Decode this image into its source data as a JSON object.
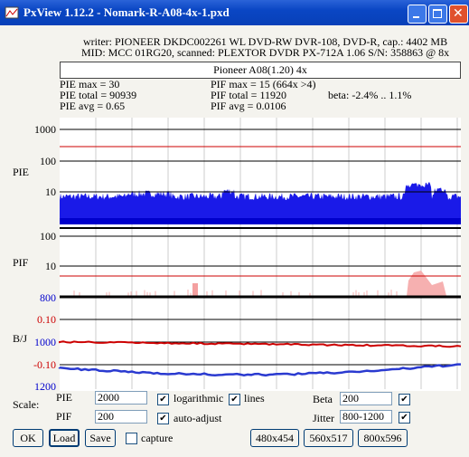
{
  "window": {
    "title": "PxView 1.12.2  -  Nomark-R-A08-4x-1.pxd"
  },
  "info": {
    "writer": "writer: PIONEER DKDC002261 WL DVD-RW DVR-108, DVD-R, cap.: 4402 MB",
    "mid": "MID: MCC 01RG20, scanned: PLEXTOR DVDR PX-712A 1.06 S/N: 358863 @ 8x",
    "profile": "Pioneer A08(1.20) 4x"
  },
  "stats": {
    "pie_max": "PIE max = 30",
    "pie_total": "PIE total = 90939",
    "pie_avg": "PIE avg = 0.65",
    "pif_max": "PIF max = 15 (664x >4)",
    "pif_total": "PIF total = 11920",
    "pif_avg": "PIF avg = 0.0106",
    "beta": "beta: -2.4% .. 1.1%"
  },
  "plots": {
    "pie": {
      "label": "PIE",
      "ticks": [
        "1000",
        "100",
        "10"
      ]
    },
    "pif": {
      "label": "PIF",
      "ticks": [
        "100",
        "10"
      ],
      "jitter_tick": "800"
    },
    "bj": {
      "label": "B/J",
      "beta_ticks": [
        "0.10",
        "-0.10"
      ],
      "jitter_ticks": [
        "1000",
        "1200"
      ]
    }
  },
  "controls": {
    "scale": "Scale:",
    "pie": "PIE",
    "pie_value": "2000",
    "pif": "PIF",
    "pif_value": "200",
    "logarithmic": "logarithmic",
    "lines": "lines",
    "auto_adjust": "auto-adjust",
    "beta": "Beta",
    "beta_value": "200",
    "jitter": "Jitter",
    "jitter_value": "800-1200",
    "ok": "OK",
    "load": "Load",
    "save": "Save",
    "capture": "capture",
    "size1": "480x454",
    "size2": "560x517",
    "size3": "800x596"
  }
}
